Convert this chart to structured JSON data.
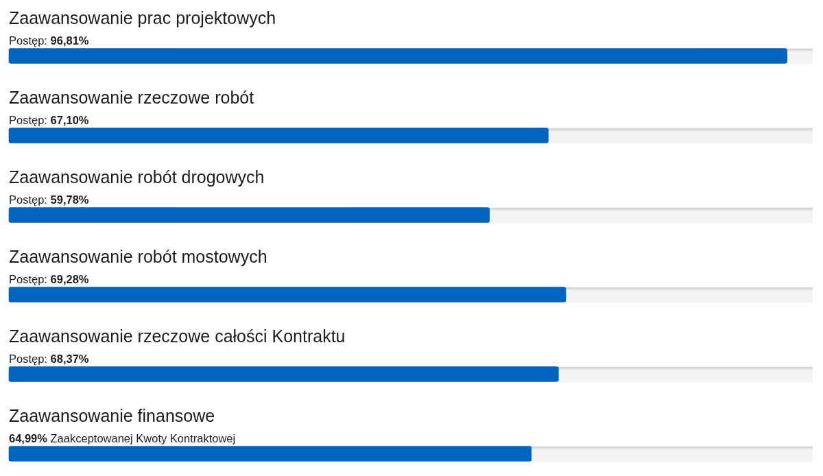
{
  "chart_data": {
    "type": "bar",
    "orientation": "horizontal",
    "categories": [
      "Zaawansowanie prac projektowych",
      "Zaawansowanie rzeczowe robót",
      "Zaawansowanie robót drogowych",
      "Zaawansowanie robót mostowych",
      "Zaawansowanie rzeczowe całości Kontraktu",
      "Zaawansowanie finansowe"
    ],
    "values": [
      96.81,
      67.1,
      59.78,
      69.28,
      68.37,
      64.99
    ],
    "value_labels": [
      "Postęp: 96,81%",
      "Postęp: 67,10%",
      "Postęp: 59,78%",
      "Postęp: 69,28%",
      "Postęp: 68,37%",
      "64,99% Zaakceptowanej Kwoty Kontraktowej"
    ],
    "color": "#0063be",
    "xlim": [
      0,
      100
    ],
    "tick_labels": "y"
  }
}
